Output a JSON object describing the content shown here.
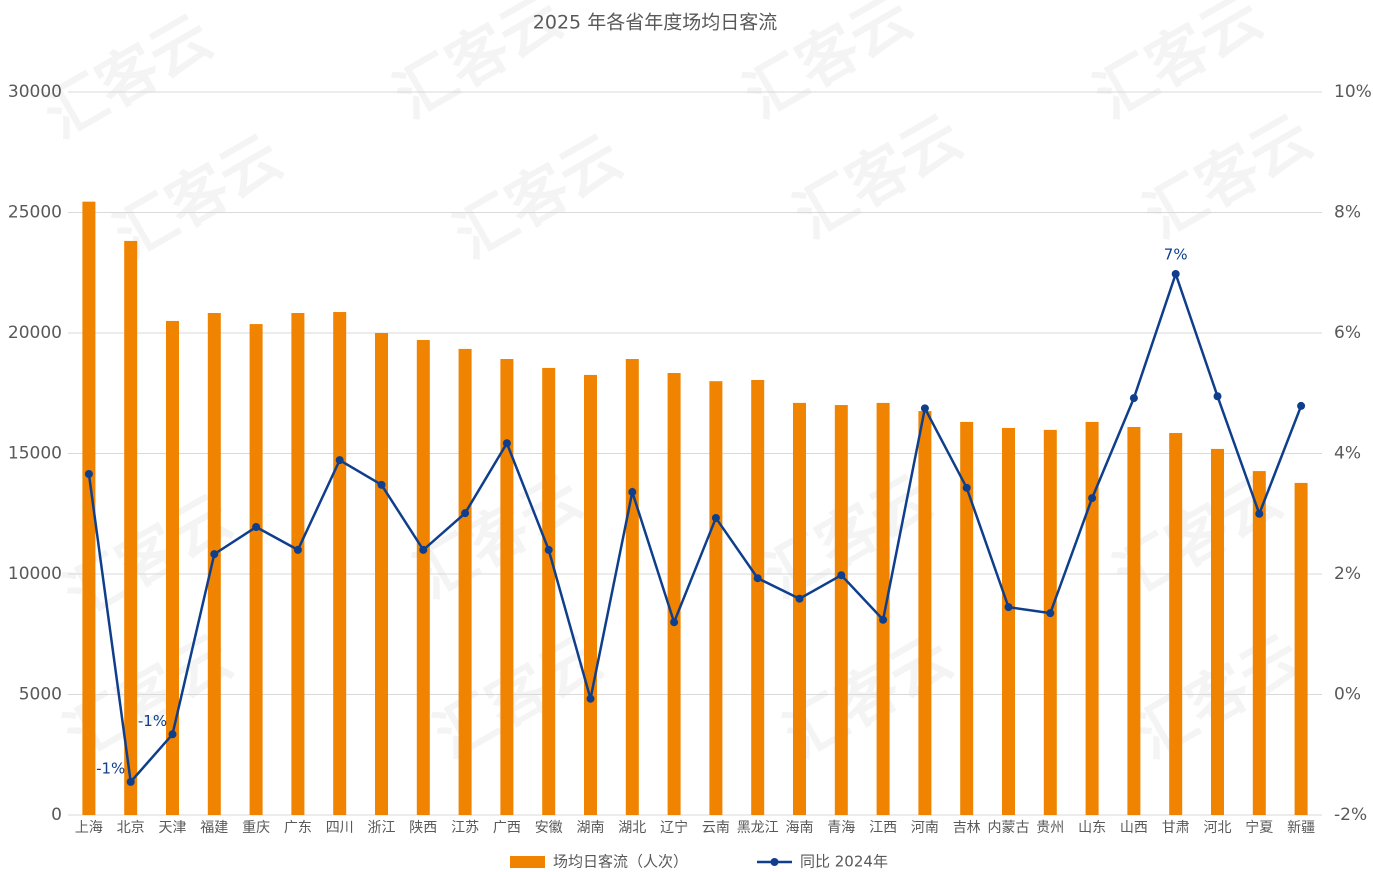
{
  "chart_data": {
    "type": "bar",
    "title": "2025 年各省年度场均日客流",
    "watermark": "汇客云",
    "categories": [
      "上海",
      "北京",
      "天津",
      "福建",
      "重庆",
      "广东",
      "四川",
      "浙江",
      "陕西",
      "江苏",
      "广西",
      "安徽",
      "湖南",
      "湖北",
      "辽宁",
      "云南",
      "黑龙江",
      "海南",
      "青海",
      "江西",
      "河南",
      "吉林",
      "内蒙古",
      "贵州",
      "山东",
      "山西",
      "甘肃",
      "河北",
      "宁夏",
      "新疆"
    ],
    "series": [
      {
        "name": "场均日客流（人次）",
        "type": "bar",
        "color": "#f08300",
        "values": [
          25450,
          23820,
          20500,
          20830,
          20370,
          20830,
          20870,
          20000,
          19710,
          19340,
          18920,
          18550,
          18260,
          18920,
          18340,
          18000,
          18050,
          17100,
          17010,
          17100,
          16760,
          16310,
          16060,
          15980,
          16310,
          16100,
          15850,
          15190,
          14270,
          13780
        ]
      },
      {
        "name": "同比 2024年",
        "type": "line",
        "axis": "y2",
        "color": "#0f3f8c",
        "values": [
          3.66,
          -1.45,
          -0.66,
          2.33,
          2.78,
          2.4,
          3.89,
          3.48,
          2.4,
          3.01,
          4.17,
          2.4,
          -0.07,
          3.36,
          1.2,
          2.93,
          1.93,
          1.59,
          1.98,
          1.24,
          4.75,
          3.43,
          1.45,
          1.35,
          3.26,
          4.92,
          6.98,
          4.95,
          3.0,
          4.79
        ],
        "value_labels": [
          null,
          "-1%",
          "-1%",
          null,
          null,
          null,
          null,
          null,
          null,
          null,
          null,
          null,
          null,
          null,
          null,
          null,
          null,
          null,
          null,
          null,
          null,
          null,
          null,
          null,
          null,
          null,
          "7%",
          null,
          null,
          null
        ]
      }
    ],
    "ylim": [
      0,
      30000
    ],
    "yticks": [
      0,
      5000,
      10000,
      15000,
      20000,
      25000,
      30000
    ],
    "y2lim": [
      -2,
      10
    ],
    "y2ticks": [
      {
        "value": -2,
        "label": "-2%"
      },
      {
        "value": 0,
        "label": "0%"
      },
      {
        "value": 2,
        "label": "2%"
      },
      {
        "value": 4,
        "label": "4%"
      },
      {
        "value": 6,
        "label": "6%"
      },
      {
        "value": 8,
        "label": "8%"
      },
      {
        "value": 10,
        "label": "10%"
      }
    ],
    "grid": true
  }
}
